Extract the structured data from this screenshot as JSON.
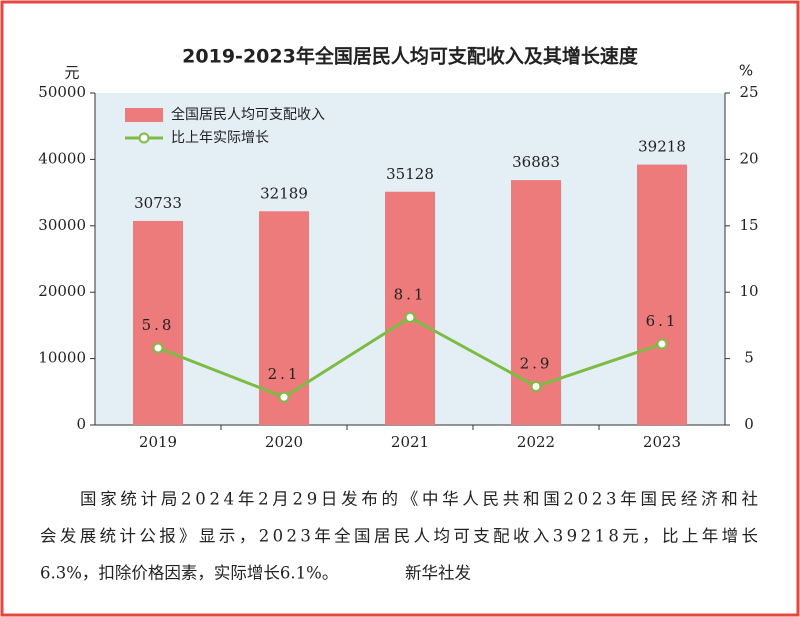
{
  "chart_data": {
    "type": "bar",
    "title": "2019-2023年全国居民人均可支配收入及其增长速度",
    "ylabel": "元",
    "y2label": "%",
    "categories": [
      "2019",
      "2020",
      "2021",
      "2022",
      "2023"
    ],
    "series": [
      {
        "name": "全国居民人均可支配收入",
        "type": "bar",
        "color": "#ee7b7c",
        "values": [
          30733,
          32189,
          35128,
          36883,
          39218
        ]
      },
      {
        "name": "比上年实际增长",
        "type": "line",
        "axis": "y2",
        "color": "#7cbc45",
        "values": [
          5.8,
          2.1,
          8.1,
          2.9,
          6.1
        ]
      }
    ],
    "ylim": [
      0,
      50000
    ],
    "yticks": [
      0,
      10000,
      20000,
      30000,
      40000,
      50000
    ],
    "y2lim": [
      0,
      25
    ],
    "y2ticks": [
      0,
      5,
      10,
      15,
      20,
      25
    ],
    "grid": false,
    "legend": "upper left"
  },
  "caption": {
    "lines": [
      "国家统计局2024年2月29日发布的《中华人民共和国2023年国民经济和社",
      "会发展统计公报》显示，2023年全国居民人均可支配收入39218元，比上年增长",
      "6.3%，扣除价格因素，实际增长6.1%。"
    ],
    "source": "新华社发"
  }
}
